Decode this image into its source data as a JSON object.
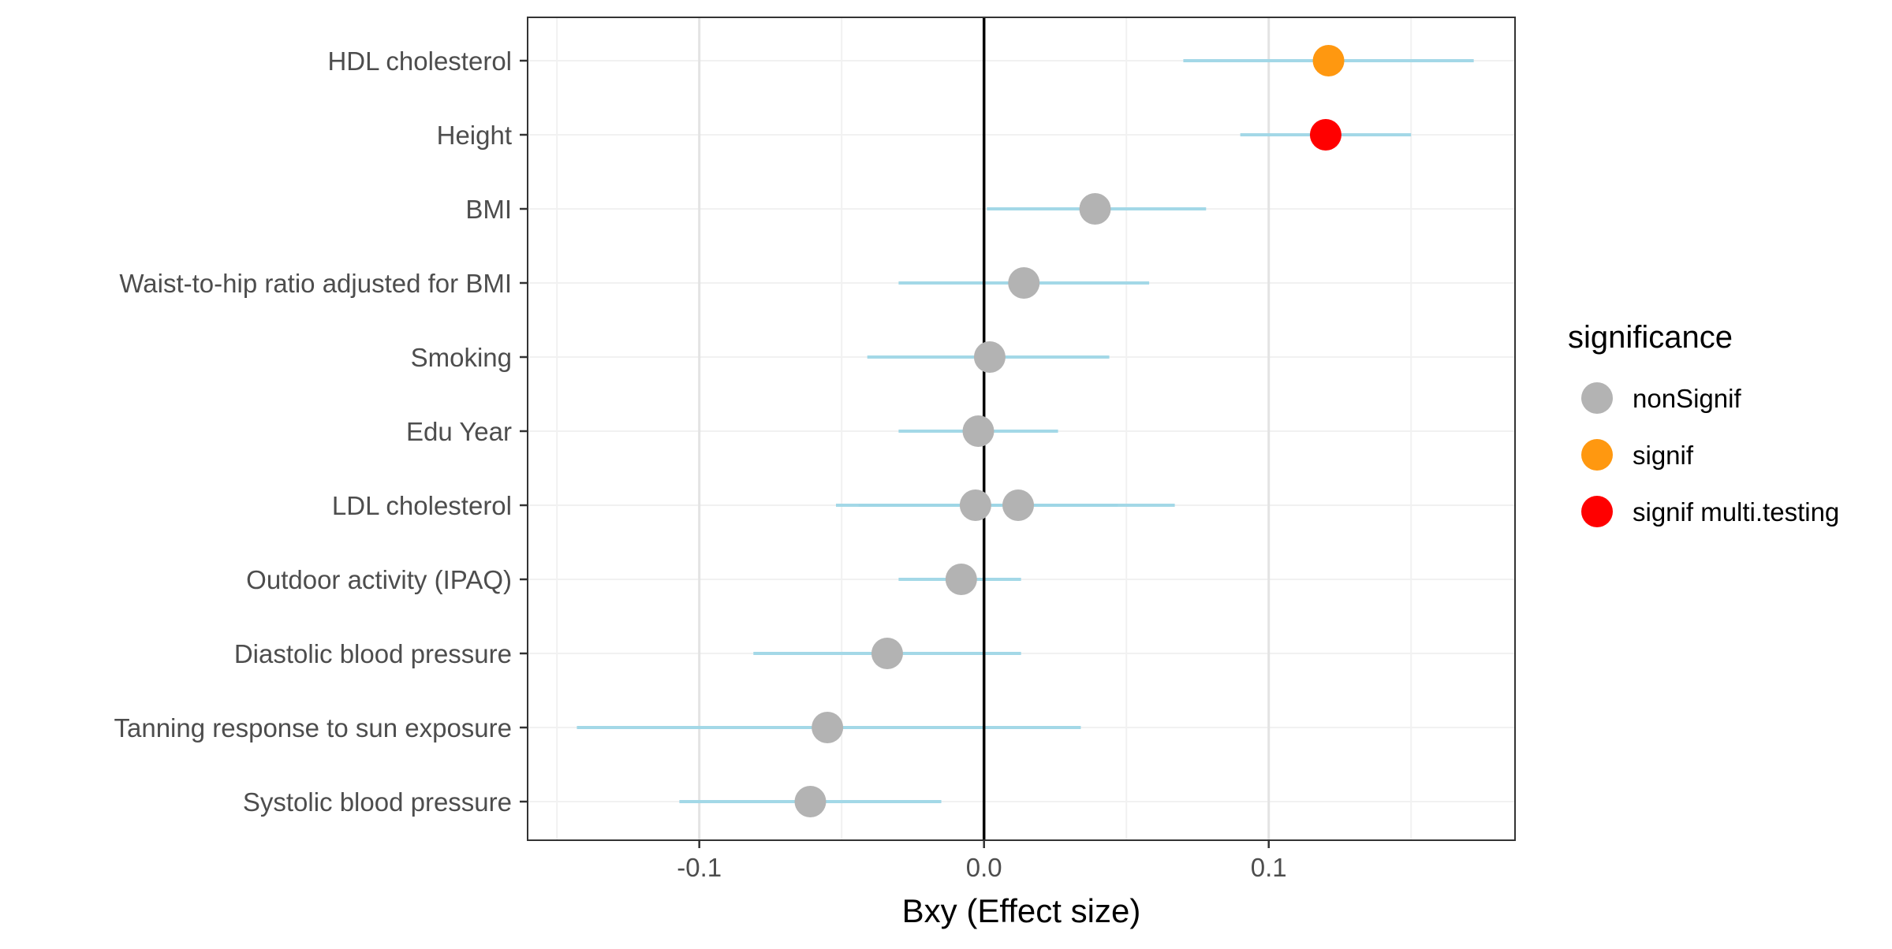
{
  "chart_data": {
    "type": "scatter",
    "subtype": "forest-plot",
    "title": "",
    "xlabel": "Bxy (Effect size)",
    "ylabel": "",
    "xlim": [
      -0.1603,
      0.1865
    ],
    "x_ticks": [
      -0.1,
      0.0,
      0.1
    ],
    "x_tick_labels": [
      "-0.1",
      "0.0",
      "0.1"
    ],
    "reference_line_x": 0,
    "grid": true,
    "categories": [
      "HDL cholesterol",
      "Height",
      "BMI",
      "Waist-to-hip ratio adjusted for BMI",
      "Smoking",
      "Edu Year",
      "LDL cholesterol",
      "Outdoor activity (IPAQ)",
      "Diastolic blood pressure",
      "Tanning response to sun exposure",
      "Systolic blood pressure"
    ],
    "points": [
      {
        "category": "HDL cholesterol",
        "x": 0.121,
        "lower": 0.07,
        "upper": 0.172,
        "significance": "signif"
      },
      {
        "category": "Height",
        "x": 0.12,
        "lower": 0.09,
        "upper": 0.15,
        "significance": "signif multi.testing"
      },
      {
        "category": "BMI",
        "x": 0.039,
        "lower": 0.001,
        "upper": 0.078,
        "significance": "nonSignif"
      },
      {
        "category": "Waist-to-hip ratio adjusted for BMI",
        "x": 0.014,
        "lower": -0.03,
        "upper": 0.058,
        "significance": "nonSignif"
      },
      {
        "category": "Smoking",
        "x": 0.002,
        "lower": -0.041,
        "upper": 0.044,
        "significance": "nonSignif"
      },
      {
        "category": "Edu Year",
        "x": -0.002,
        "lower": -0.03,
        "upper": 0.026,
        "significance": "nonSignif"
      },
      {
        "category": "LDL cholesterol",
        "x": -0.003,
        "lower": -0.052,
        "upper": 0.047,
        "significance": "nonSignif"
      },
      {
        "category": "LDL cholesterol",
        "x": 0.012,
        "lower": -0.044,
        "upper": 0.067,
        "significance": "nonSignif"
      },
      {
        "category": "Outdoor activity (IPAQ)",
        "x": -0.008,
        "lower": -0.03,
        "upper": 0.013,
        "significance": "nonSignif"
      },
      {
        "category": "Diastolic blood pressure",
        "x": -0.034,
        "lower": -0.081,
        "upper": 0.013,
        "significance": "nonSignif"
      },
      {
        "category": "Tanning response to sun exposure",
        "x": -0.055,
        "lower": -0.143,
        "upper": 0.034,
        "significance": "nonSignif"
      },
      {
        "category": "Systolic blood pressure",
        "x": -0.061,
        "lower": -0.107,
        "upper": -0.015,
        "significance": "nonSignif"
      }
    ],
    "legend": {
      "title": "significance",
      "position": "right",
      "entries": [
        {
          "label": "nonSignif",
          "color": "#b3b3b3"
        },
        {
          "label": "signif",
          "color": "#ff9810"
        },
        {
          "label": "signif multi.testing",
          "color": "#ff0000"
        }
      ]
    },
    "colors": {
      "errorbar": "#9ed6e6",
      "zero_line": "#000000",
      "major_grid": "#e3e3e3",
      "minor_grid": "#f1f1f1",
      "panel_border": "#333333",
      "text": "#4d4d4d"
    }
  }
}
